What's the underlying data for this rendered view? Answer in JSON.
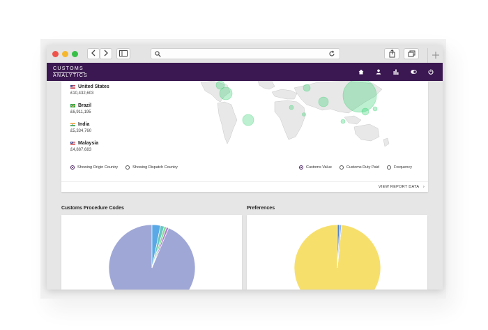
{
  "header": {
    "logo_line1": "CUSTOMS",
    "logo_line2": "ANALYTICS",
    "nav": [
      "home-icon",
      "user-icon",
      "bar-chart-icon",
      "toggle-icon",
      "power-icon"
    ]
  },
  "countries": [
    {
      "name": "United States",
      "value": "£10,432,603",
      "flag": "us"
    },
    {
      "name": "Brazil",
      "value": "£6,911,195",
      "flag": "br"
    },
    {
      "name": "India",
      "value": "£5,334,760",
      "flag": "in"
    },
    {
      "name": "Malaysia",
      "value": "£4,887,683",
      "flag": "my"
    }
  ],
  "country_mode": {
    "options": [
      "Showing Origin Country",
      "Showing Dispatch Country"
    ],
    "selected": "Showing Origin Country"
  },
  "metric_mode": {
    "options": [
      "Customs Value",
      "Customs Duty Paid",
      "Frequency"
    ],
    "selected": "Customs Value"
  },
  "view_report_label": "VIEW REPORT DATA",
  "view_report_arrow": "›",
  "sections": {
    "procedure_codes_title": "Customs Procedure Codes",
    "preferences_title": "Preferences"
  },
  "colors": {
    "brand": "#3b1851",
    "map_bubble": "#2fcf6c",
    "pie_procedure_main": "#9fa7d6",
    "pie_preferences_main": "#f7df6b"
  },
  "chart_data": [
    {
      "type": "pie",
      "title": "Customs Procedure Codes",
      "values": [
        0.937,
        0.032,
        0.014,
        0.009,
        0.008
      ],
      "colors": [
        "#9fa7d6",
        "#5aa9e6",
        "#67c7c5",
        "#8ad99a",
        "#b07acb"
      ]
    },
    {
      "type": "pie",
      "title": "Preferences",
      "values": [
        0.985,
        0.008,
        0.007
      ],
      "colors": [
        "#f7df6b",
        "#4f7fc9",
        "#8fb2e8"
      ]
    }
  ]
}
